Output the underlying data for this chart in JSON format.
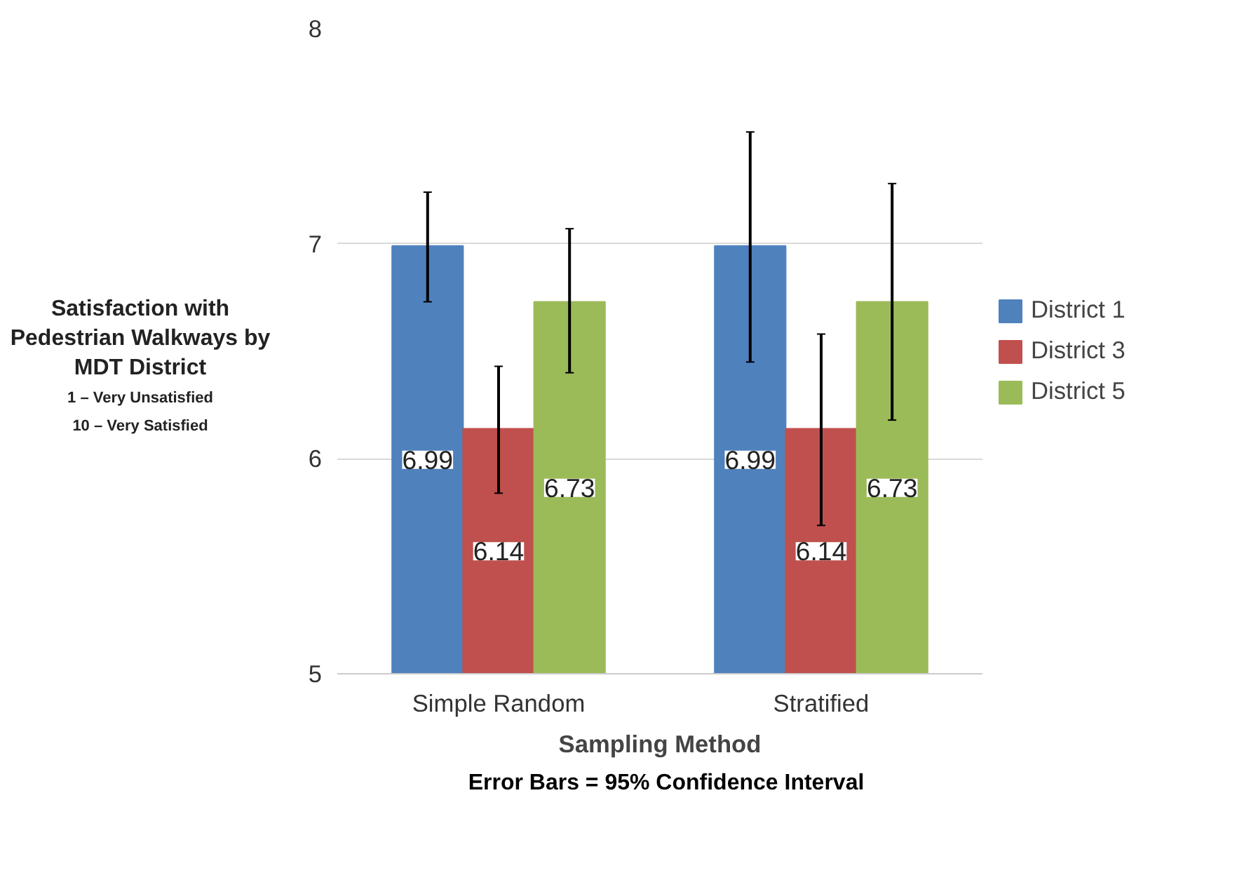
{
  "chart_data": {
    "type": "bar",
    "ylabel": "Satisfaction with Pedestrian Walkways by MDT District",
    "xlabel": "Sampling Method",
    "annotations": [
      "1 – Very Unsatisfied",
      "10 – Very Satisfied",
      "Error Bars = 95% Confidence Interval"
    ],
    "categories": [
      "Simple Random",
      "Stratified"
    ],
    "series": [
      {
        "name": "District 1",
        "color": "#4f81bd",
        "values": [
          6.99,
          6.99
        ],
        "errors": [
          [
            6.73,
            7.24
          ],
          [
            6.45,
            7.52
          ]
        ]
      },
      {
        "name": "District 3",
        "color": "#c0504d",
        "values": [
          6.14,
          6.14
        ],
        "errors": [
          [
            5.84,
            6.43
          ],
          [
            5.69,
            6.58
          ]
        ]
      },
      {
        "name": "District 5",
        "color": "#9bbb59",
        "values": [
          6.73,
          6.73
        ],
        "errors": [
          [
            6.4,
            7.07
          ],
          [
            6.18,
            7.28
          ]
        ]
      }
    ],
    "ylim": [
      5,
      8
    ],
    "yticks": [
      5,
      6,
      7,
      8
    ],
    "grid": "y",
    "legend": "right",
    "data_labels": true
  }
}
